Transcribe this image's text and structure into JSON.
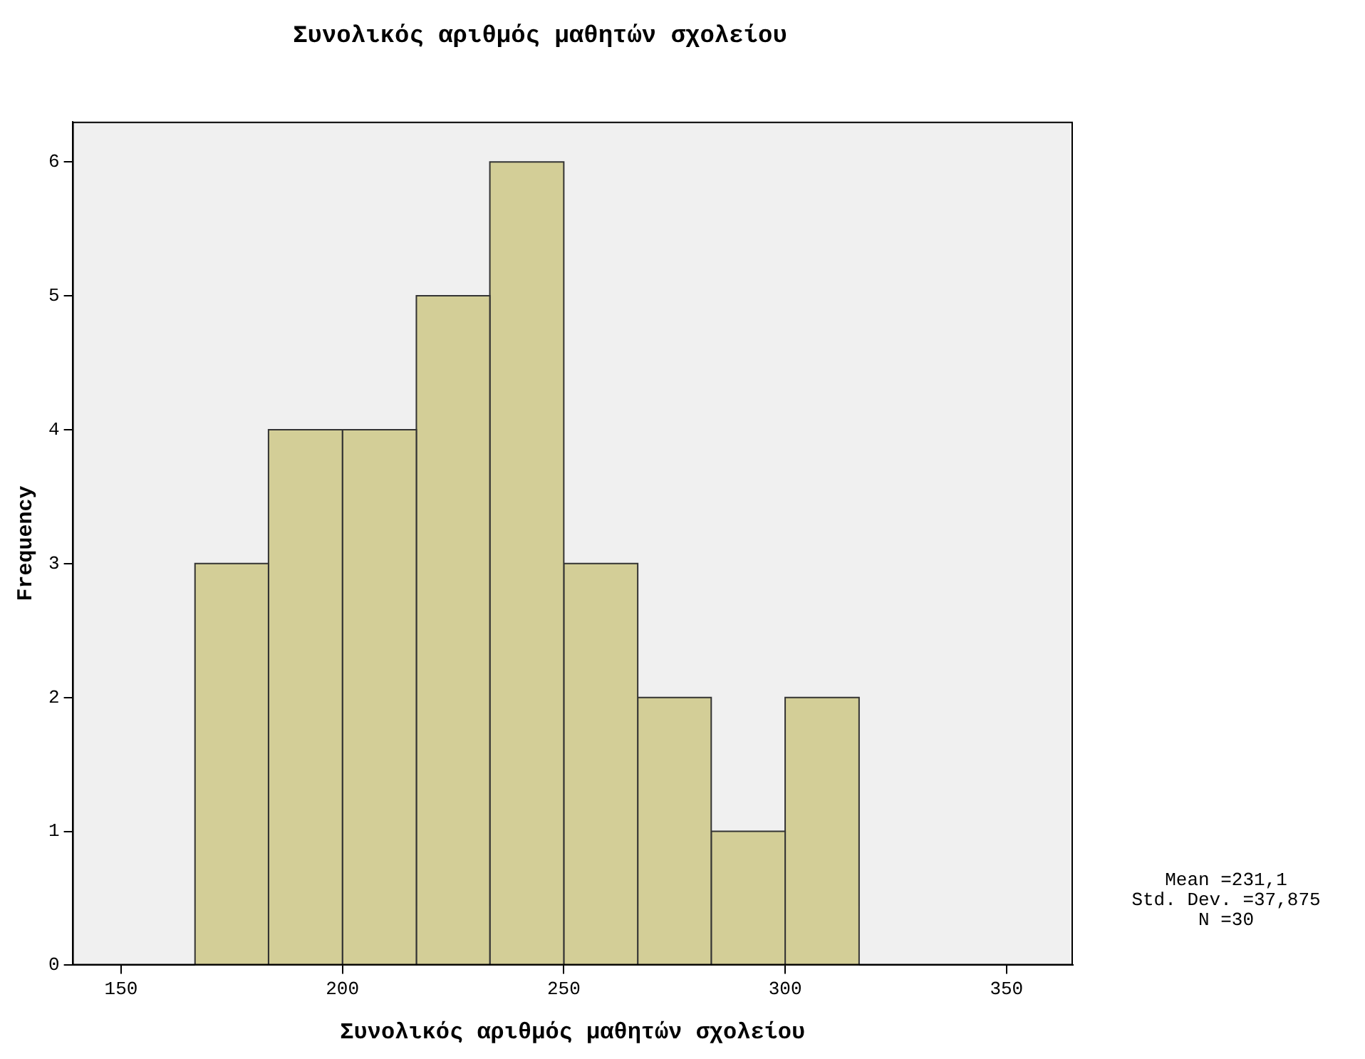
{
  "chart_data": {
    "type": "histogram",
    "title": "Συνολικός αριθμός μαθητών σχολείου",
    "xlabel": "Συνολικός αριθμός μαθητών σχολείου",
    "ylabel": "Frequency",
    "bins": [
      166.7,
      183.3,
      200,
      216.7,
      233.3,
      250,
      266.7,
      283.3,
      300,
      316.7
    ],
    "values": [
      3,
      4,
      4,
      5,
      6,
      3,
      2,
      1,
      2
    ],
    "color": "#d3ce97",
    "xlim": [
      139,
      365
    ],
    "xticks": [
      150,
      200,
      250,
      300,
      350
    ],
    "ylim": [
      0,
      6.3
    ],
    "yticks": [
      0,
      1,
      2,
      3,
      4,
      5,
      6
    ],
    "grid": false,
    "legend": false,
    "annotations": [
      "Mean =231,1",
      "Std. Dev. =37,875",
      "N =30"
    ]
  }
}
